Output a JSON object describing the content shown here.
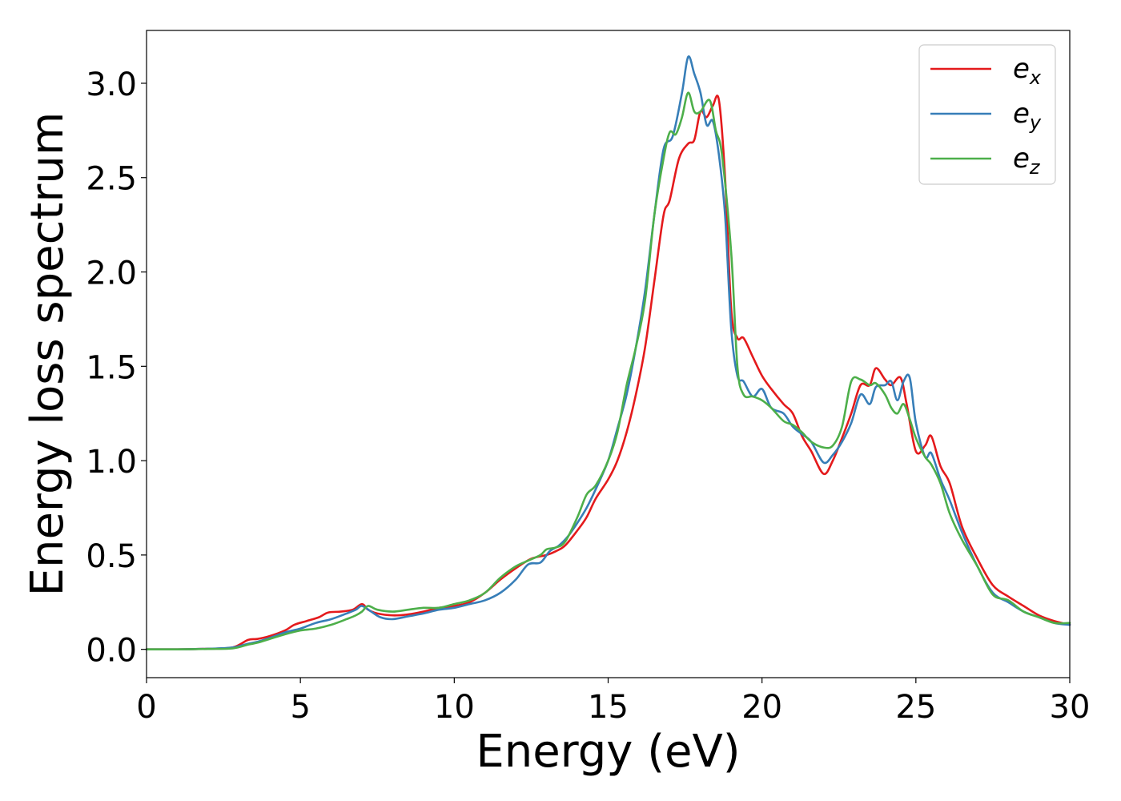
{
  "chart_data": {
    "type": "line",
    "title": "",
    "xlabel": "Energy (eV)",
    "ylabel": "Energy loss spectrum",
    "xlim": [
      0,
      30
    ],
    "ylim": [
      -0.15,
      3.28
    ],
    "xticks": [
      0,
      5,
      10,
      15,
      20,
      25,
      30
    ],
    "xtick_labels": [
      "0",
      "5",
      "10",
      "15",
      "20",
      "25",
      "30"
    ],
    "yticks": [
      0,
      0.5,
      1.0,
      1.5,
      2.0,
      2.5,
      3.0
    ],
    "ytick_labels": [
      "0.0",
      "0.5",
      "1.0",
      "1.5",
      "2.0",
      "2.5",
      "3.0"
    ],
    "grid": false,
    "legend_position": "top-right",
    "series": [
      {
        "name": "e",
        "subscript": "x",
        "color": "#e41a1c",
        "x": [
          0,
          1,
          2,
          2.8,
          3.3,
          3.6,
          4.0,
          4.5,
          4.8,
          5.2,
          5.6,
          5.9,
          6.3,
          6.7,
          7.0,
          7.2,
          7.5,
          8.0,
          8.5,
          9.0,
          9.5,
          10.0,
          10.5,
          11.0,
          11.5,
          12.0,
          12.5,
          13.0,
          13.3,
          13.6,
          14.0,
          14.3,
          14.6,
          15.0,
          15.3,
          15.6,
          15.9,
          16.2,
          16.5,
          16.8,
          17.0,
          17.3,
          17.6,
          17.8,
          18.0,
          18.2,
          18.4,
          18.6,
          18.8,
          19.0,
          19.2,
          19.4,
          19.7,
          20.0,
          20.3,
          20.7,
          21.0,
          21.3,
          21.6,
          22.0,
          22.3,
          22.6,
          22.9,
          23.2,
          23.5,
          23.7,
          24.0,
          24.2,
          24.5,
          24.7,
          25.0,
          25.3,
          25.5,
          25.8,
          26.1,
          26.5,
          27.0,
          27.5,
          28.0,
          28.5,
          29.0,
          29.5,
          30.0
        ],
        "y": [
          0,
          0,
          0.003,
          0.01,
          0.05,
          0.055,
          0.07,
          0.1,
          0.13,
          0.15,
          0.17,
          0.195,
          0.2,
          0.21,
          0.24,
          0.21,
          0.19,
          0.18,
          0.185,
          0.2,
          0.22,
          0.23,
          0.25,
          0.3,
          0.37,
          0.43,
          0.48,
          0.5,
          0.52,
          0.55,
          0.63,
          0.7,
          0.8,
          0.9,
          1.0,
          1.15,
          1.35,
          1.6,
          1.95,
          2.3,
          2.38,
          2.6,
          2.68,
          2.7,
          2.85,
          2.82,
          2.88,
          2.91,
          2.5,
          1.8,
          1.65,
          1.65,
          1.55,
          1.45,
          1.38,
          1.3,
          1.25,
          1.13,
          1.05,
          0.93,
          1.0,
          1.12,
          1.25,
          1.4,
          1.4,
          1.49,
          1.43,
          1.4,
          1.44,
          1.3,
          1.05,
          1.08,
          1.13,
          0.97,
          0.88,
          0.65,
          0.48,
          0.34,
          0.28,
          0.23,
          0.18,
          0.15,
          0.13
        ]
      },
      {
        "name": "e",
        "subscript": "y",
        "color": "#377eb8",
        "x": [
          0,
          1,
          2,
          2.8,
          3.3,
          3.6,
          4.0,
          4.5,
          5.0,
          5.5,
          6.0,
          6.5,
          6.8,
          7.0,
          7.3,
          7.6,
          8.0,
          8.5,
          9.0,
          9.5,
          10.0,
          10.5,
          11.0,
          11.5,
          12.0,
          12.4,
          12.8,
          13.1,
          13.4,
          13.7,
          14.0,
          14.3,
          14.6,
          15.0,
          15.3,
          15.6,
          15.9,
          16.2,
          16.5,
          16.8,
          17.1,
          17.4,
          17.6,
          17.8,
          18.0,
          18.2,
          18.4,
          18.6,
          18.8,
          19.0,
          19.2,
          19.4,
          19.7,
          20.0,
          20.3,
          20.7,
          21.0,
          21.3,
          21.6,
          22.0,
          22.3,
          22.6,
          22.9,
          23.2,
          23.5,
          23.7,
          24.0,
          24.2,
          24.4,
          24.6,
          24.8,
          25.0,
          25.3,
          25.5,
          25.8,
          26.1,
          26.5,
          27.0,
          27.5,
          28.0,
          28.5,
          29.0,
          29.5,
          30.0
        ],
        "y": [
          0,
          0,
          0.003,
          0.01,
          0.03,
          0.04,
          0.06,
          0.09,
          0.11,
          0.14,
          0.16,
          0.19,
          0.21,
          0.23,
          0.2,
          0.17,
          0.16,
          0.175,
          0.19,
          0.21,
          0.22,
          0.24,
          0.26,
          0.3,
          0.37,
          0.45,
          0.46,
          0.52,
          0.55,
          0.6,
          0.67,
          0.75,
          0.85,
          1.0,
          1.17,
          1.35,
          1.6,
          1.9,
          2.3,
          2.65,
          2.72,
          2.95,
          3.14,
          3.05,
          2.95,
          2.78,
          2.8,
          2.62,
          2.3,
          1.7,
          1.45,
          1.42,
          1.34,
          1.38,
          1.28,
          1.25,
          1.18,
          1.14,
          1.1,
          0.99,
          1.03,
          1.1,
          1.2,
          1.35,
          1.3,
          1.39,
          1.4,
          1.42,
          1.32,
          1.42,
          1.44,
          1.2,
          1.02,
          1.04,
          0.9,
          0.79,
          0.62,
          0.44,
          0.3,
          0.25,
          0.2,
          0.17,
          0.14,
          0.13
        ]
      },
      {
        "name": "e",
        "subscript": "z",
        "color": "#4daf4a",
        "x": [
          0,
          1,
          2,
          2.8,
          3.3,
          3.6,
          4.0,
          4.5,
          5.0,
          5.5,
          6.0,
          6.5,
          6.8,
          7.0,
          7.2,
          7.5,
          8.0,
          8.5,
          9.0,
          9.5,
          10.0,
          10.5,
          11.0,
          11.5,
          12.0,
          12.4,
          12.8,
          13.0,
          13.3,
          13.6,
          14.0,
          14.3,
          14.6,
          15.0,
          15.3,
          15.6,
          15.9,
          16.2,
          16.5,
          16.8,
          17.0,
          17.2,
          17.4,
          17.6,
          17.8,
          18.0,
          18.3,
          18.5,
          18.7,
          19.0,
          19.2,
          19.4,
          19.7,
          20.0,
          20.3,
          20.7,
          21.0,
          21.3,
          21.6,
          22.0,
          22.3,
          22.6,
          22.9,
          23.2,
          23.5,
          23.7,
          24.0,
          24.2,
          24.4,
          24.6,
          24.8,
          25.0,
          25.3,
          25.5,
          25.8,
          26.1,
          26.5,
          27.0,
          27.5,
          28.0,
          28.5,
          29.0,
          29.5,
          30.0
        ],
        "y": [
          0,
          0,
          0.002,
          0.005,
          0.025,
          0.035,
          0.055,
          0.08,
          0.1,
          0.11,
          0.13,
          0.16,
          0.18,
          0.2,
          0.23,
          0.21,
          0.2,
          0.21,
          0.22,
          0.22,
          0.24,
          0.26,
          0.3,
          0.38,
          0.44,
          0.47,
          0.5,
          0.53,
          0.54,
          0.57,
          0.7,
          0.82,
          0.87,
          1.0,
          1.15,
          1.4,
          1.6,
          1.85,
          2.3,
          2.6,
          2.74,
          2.73,
          2.82,
          2.95,
          2.85,
          2.85,
          2.91,
          2.75,
          2.62,
          2.1,
          1.5,
          1.35,
          1.34,
          1.32,
          1.28,
          1.21,
          1.19,
          1.15,
          1.1,
          1.07,
          1.08,
          1.18,
          1.42,
          1.43,
          1.4,
          1.41,
          1.35,
          1.28,
          1.25,
          1.3,
          1.22,
          1.12,
          1.02,
          0.98,
          0.88,
          0.72,
          0.58,
          0.44,
          0.29,
          0.26,
          0.2,
          0.17,
          0.14,
          0.14
        ]
      }
    ]
  }
}
